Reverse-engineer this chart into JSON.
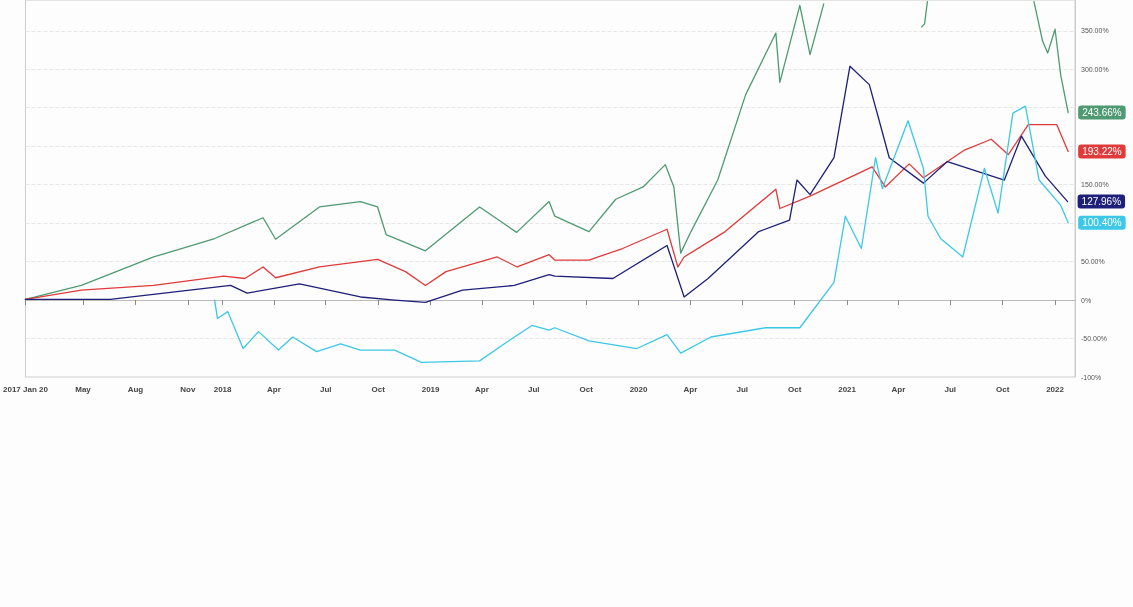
{
  "chart_data": {
    "type": "line",
    "xlim": [
      "2017-01-20",
      "2022-02-05"
    ],
    "xticks": [
      {
        "value": "2017-01-20",
        "label": "2017 Jan 20"
      },
      {
        "value": "2017-05-01",
        "label": "May"
      },
      {
        "value": "2017-08-01",
        "label": "Aug"
      },
      {
        "value": "2017-11-01",
        "label": "Nov"
      },
      {
        "value": "2018-01-01",
        "label": "2018"
      },
      {
        "value": "2018-04-01",
        "label": "Apr"
      },
      {
        "value": "2018-07-01",
        "label": "Jul"
      },
      {
        "value": "2018-10-01",
        "label": "Oct"
      },
      {
        "value": "2019-01-01",
        "label": "2019"
      },
      {
        "value": "2019-04-01",
        "label": "Apr"
      },
      {
        "value": "2019-07-01",
        "label": "Jul"
      },
      {
        "value": "2019-10-01",
        "label": "Oct"
      },
      {
        "value": "2020-01-01",
        "label": "2020"
      },
      {
        "value": "2020-04-01",
        "label": "Apr"
      },
      {
        "value": "2020-07-01",
        "label": "Jul"
      },
      {
        "value": "2020-10-01",
        "label": "Oct"
      },
      {
        "value": "2021-01-01",
        "label": "2021"
      },
      {
        "value": "2021-04-01",
        "label": "Apr"
      },
      {
        "value": "2021-07-01",
        "label": "Jul"
      },
      {
        "value": "2021-10-01",
        "label": "Oct"
      },
      {
        "value": "2022-01-01",
        "label": "2022"
      }
    ],
    "ylim": [
      -100,
      390
    ],
    "yticks": [
      {
        "value": -100,
        "label": "-100%"
      },
      {
        "value": -50,
        "label": "-50.00%"
      },
      {
        "value": 0,
        "label": "0%"
      },
      {
        "value": 50,
        "label": "50.00%"
      },
      {
        "value": 100,
        "label": null
      },
      {
        "value": 150,
        "label": "150.00%"
      },
      {
        "value": 200,
        "label": null
      },
      {
        "value": 250,
        "label": null
      },
      {
        "value": 300,
        "label": "300.00%"
      },
      {
        "value": 350,
        "label": "350.00%"
      }
    ],
    "grid": "y",
    "marker": "none",
    "series": [
      {
        "color": "#4f9a72",
        "x": [
          "2017-01-20",
          "2017-04-28",
          "2017-09-02",
          "2017-12-18",
          "2018-03-13",
          "2018-04-04",
          "2018-06-20",
          "2018-08-31",
          "2018-09-30",
          "2018-10-15",
          "2018-12-23",
          "2019-03-28",
          "2019-06-01",
          "2019-07-28",
          "2019-08-07",
          "2019-10-06",
          "2019-11-22",
          "2020-01-09",
          "2020-02-17",
          "2020-03-03",
          "2020-03-15",
          "2020-04-02",
          "2020-05-19",
          "2020-07-07",
          "2020-08-29",
          "2020-09-05",
          "2020-10-10",
          "2020-10-28",
          "2020-11-21",
          "2020-12-20",
          "2021-05-12",
          "2021-05-17",
          "2021-05-22",
          "2021-08-01",
          "2021-11-25",
          "2021-12-10",
          "2021-12-19",
          "2022-01-01",
          "2022-01-11",
          "2022-01-24"
        ],
        "values": [
          1,
          19,
          56,
          80,
          107,
          79,
          121,
          128,
          121,
          85,
          64,
          121,
          88,
          128,
          109,
          89,
          131,
          147,
          176,
          147,
          61,
          89,
          156,
          267,
          347,
          283,
          383,
          319,
          385,
          null,
          355,
          359,
          388,
          null,
          388,
          337,
          321,
          352,
          292,
          243.66
        ],
        "value_labels": [
          null,
          null,
          null,
          null,
          null,
          null,
          null,
          null,
          null,
          null,
          null,
          null,
          null,
          null,
          null,
          null,
          null,
          null,
          null,
          null,
          null,
          null,
          null,
          null,
          null,
          null,
          null,
          null,
          null,
          null,
          null,
          null,
          null,
          null,
          null,
          null,
          null,
          null,
          null,
          "243.66%"
        ]
      },
      {
        "color": "#e03a3a",
        "x": [
          "2017-01-20",
          "2017-04-28",
          "2017-09-02",
          "2018-01-03",
          "2018-02-09",
          "2018-03-13",
          "2018-04-04",
          "2018-06-20",
          "2018-09-30",
          "2018-11-18",
          "2018-12-23",
          "2019-01-28",
          "2019-04-28",
          "2019-06-02",
          "2019-07-28",
          "2019-08-07",
          "2019-10-06",
          "2019-12-04",
          "2020-02-20",
          "2020-03-10",
          "2020-03-21",
          "2020-06-01",
          "2020-08-29",
          "2020-09-05",
          "2020-10-28",
          "2021-02-14",
          "2021-03-09",
          "2021-04-20",
          "2021-05-15",
          "2021-07-26",
          "2021-09-11",
          "2021-10-11",
          "2021-11-15",
          "2022-01-04",
          "2022-01-24"
        ],
        "values": [
          1,
          13,
          19,
          31,
          28,
          43,
          29,
          43,
          53,
          37,
          19,
          37,
          56,
          43,
          59,
          52,
          52,
          67,
          92,
          43,
          56,
          89,
          144,
          119,
          135,
          173,
          147,
          177,
          159,
          195,
          209,
          189,
          228,
          228,
          193.22
        ],
        "value_labels": [
          null,
          null,
          null,
          null,
          null,
          null,
          null,
          null,
          null,
          null,
          null,
          null,
          null,
          null,
          null,
          null,
          null,
          null,
          null,
          null,
          null,
          null,
          null,
          null,
          null,
          null,
          null,
          null,
          null,
          null,
          null,
          null,
          null,
          null,
          "193.22%"
        ]
      },
      {
        "color": "#1e1f78",
        "x": [
          "2017-01-20",
          "2017-06-18",
          "2018-01-15",
          "2018-02-13",
          "2018-05-16",
          "2018-08-31",
          "2018-10-30",
          "2018-12-23",
          "2019-02-26",
          "2019-05-28",
          "2019-07-28",
          "2019-08-07",
          "2019-11-17",
          "2020-02-20",
          "2020-03-21",
          "2020-05-02",
          "2020-07-30",
          "2020-09-22",
          "2020-10-05",
          "2020-10-28",
          "2020-12-09",
          "2021-01-06",
          "2021-02-09",
          "2021-02-25",
          "2021-03-16",
          "2021-05-15",
          "2021-06-26",
          "2021-10-04",
          "2021-11-03",
          "2021-12-15",
          "2022-01-23"
        ],
        "values": [
          1,
          1,
          19,
          9,
          21,
          4,
          0,
          -3,
          13,
          19,
          33,
          31,
          28,
          71,
          4,
          28,
          89,
          104,
          156,
          137,
          185,
          304,
          280,
          237,
          185,
          152,
          180,
          156,
          213,
          161,
          127.96
        ],
        "value_labels": [
          null,
          null,
          null,
          null,
          null,
          null,
          null,
          null,
          null,
          null,
          null,
          null,
          null,
          null,
          null,
          null,
          null,
          null,
          null,
          null,
          null,
          null,
          null,
          null,
          null,
          null,
          null,
          null,
          null,
          null,
          "127.96%"
        ]
      },
      {
        "color": "#3cc8e6",
        "x": [
          "2017-12-18",
          "2017-12-23",
          "2018-01-10",
          "2018-02-06",
          "2018-03-05",
          "2018-04-09",
          "2018-05-04",
          "2018-06-15",
          "2018-07-27",
          "2018-08-31",
          "2018-10-30",
          "2018-12-16",
          "2019-03-28",
          "2019-05-10",
          "2019-06-28",
          "2019-07-28",
          "2019-08-07",
          "2019-10-06",
          "2019-12-29",
          "2020-02-20",
          "2020-03-15",
          "2020-05-07",
          "2020-08-11",
          "2020-10-10",
          "2020-12-09",
          "2020-12-29",
          "2021-01-26",
          "2021-02-20",
          "2021-03-04",
          "2021-04-18",
          "2021-05-15",
          "2021-05-23",
          "2021-06-14",
          "2021-07-23",
          "2021-08-30",
          "2021-09-23",
          "2021-10-19",
          "2021-11-10",
          "2021-12-04",
          "2022-01-11",
          "2022-01-24"
        ],
        "values": [
          0,
          -24,
          -15,
          -63,
          -41,
          -65,
          -48,
          -67,
          -57,
          -65,
          -65,
          -81,
          -79,
          -57,
          -33,
          -39,
          -36,
          -53,
          -63,
          -45,
          -69,
          -48,
          -36,
          -36,
          23,
          109,
          67,
          185,
          145,
          233,
          171,
          109,
          80,
          56,
          171,
          113,
          243,
          252,
          156,
          123,
          100.4
        ],
        "value_labels": [
          null,
          null,
          null,
          null,
          null,
          null,
          null,
          null,
          null,
          null,
          null,
          null,
          null,
          null,
          null,
          null,
          null,
          null,
          null,
          null,
          null,
          null,
          null,
          null,
          null,
          null,
          null,
          null,
          null,
          null,
          null,
          null,
          null,
          null,
          null,
          null,
          null,
          null,
          null,
          null,
          "100.40%"
        ]
      }
    ]
  }
}
